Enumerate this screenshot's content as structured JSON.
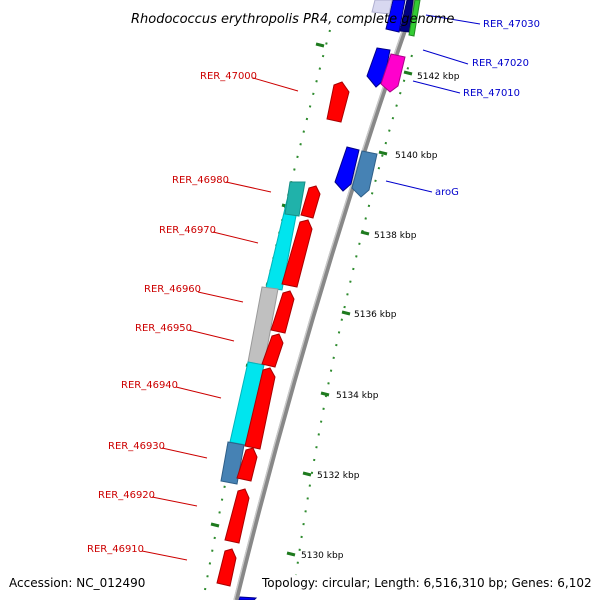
{
  "title": "Rhodococcus erythropolis PR4, complete genome",
  "footer": {
    "accession": "Accession: NC_012490",
    "summary": "Topology: circular; Length: 6,516,310 bp; Genes: 6,102"
  },
  "kbp_labels": [
    "5142 kbp",
    "5140 kbp",
    "5138 kbp",
    "5136 kbp",
    "5134 kbp",
    "5132 kbp",
    "5130 kbp"
  ],
  "left_labels": [
    "RER_47000",
    "RER_46980",
    "RER_46970",
    "RER_46960",
    "RER_46950",
    "RER_46940",
    "RER_46930",
    "RER_46920",
    "RER_46910"
  ],
  "right_labels": [
    "RER_47030",
    "RER_47020",
    "RER_47010",
    "aroG"
  ],
  "colors": {
    "backbone": "#909090",
    "reverse_gene": "#ff0000",
    "forward_gene": "#0000ff",
    "cyan_block": "#00ffff",
    "grey_block": "#c0c0c0",
    "steelblue_block": "#4682b4",
    "teal_block": "#20b2aa",
    "magenta_gene": "#ff00cc",
    "green_gene": "#33cc33",
    "tick": "#228b22",
    "left_label": "#cc0000",
    "right_label": "#0000cc"
  }
}
